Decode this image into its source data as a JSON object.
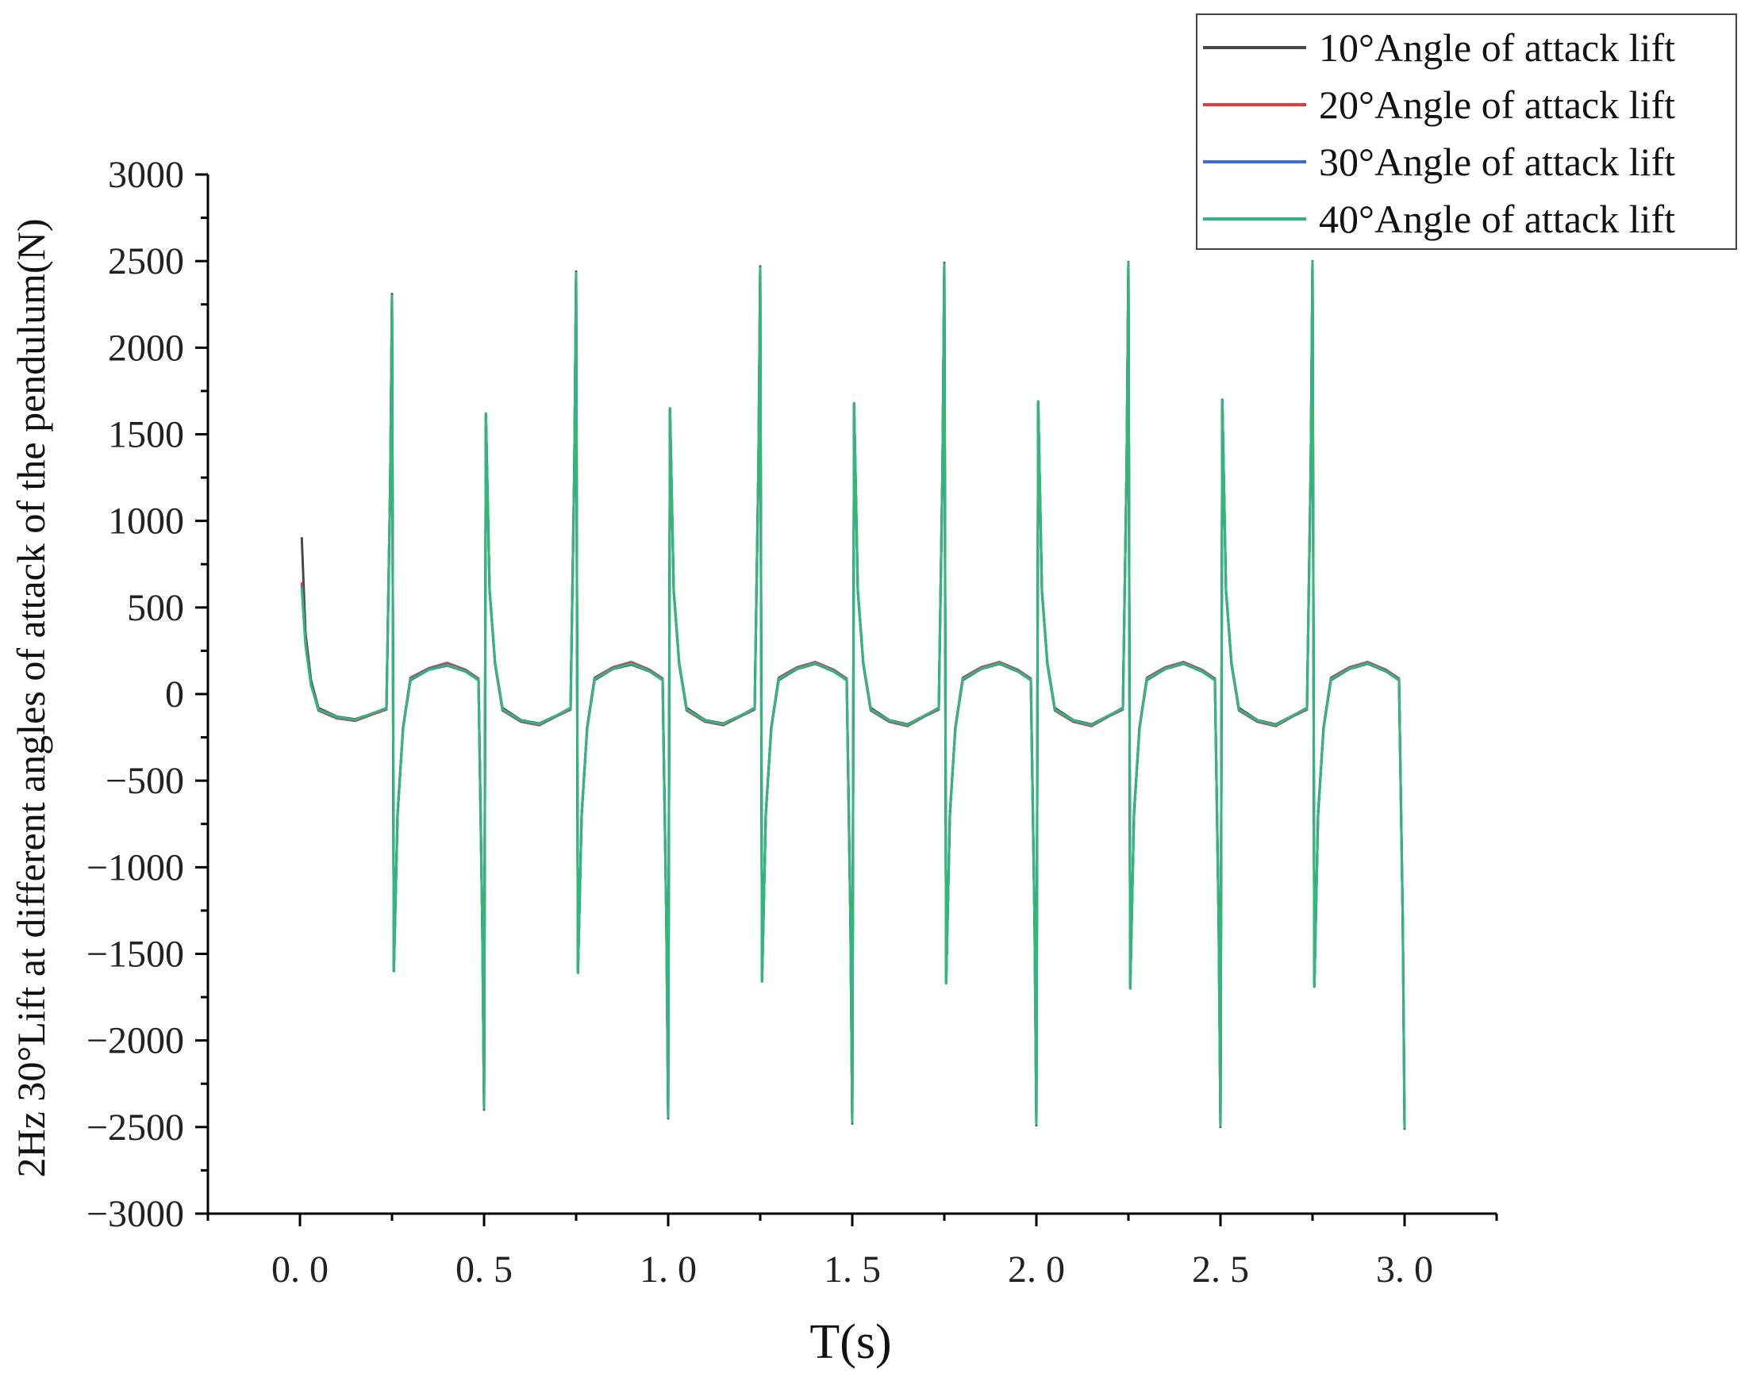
{
  "chart_data": {
    "type": "line",
    "xlabel": "T(s)",
    "ylabel": "2Hz 30°Lift at different angles of attack of the pendulum(N)",
    "xlim": [
      -0.25,
      3.25
    ],
    "ylim": [
      -3000,
      3000
    ],
    "x_ticks": [
      0.0,
      0.5,
      1.0,
      1.5,
      2.0,
      2.5,
      3.0
    ],
    "x_tick_labels": [
      "0. 0",
      "0. 5",
      "1. 0",
      "1. 5",
      "2. 0",
      "2. 5",
      "3. 0"
    ],
    "y_ticks": [
      3000,
      2500,
      2000,
      1500,
      1000,
      500,
      0,
      -500,
      -1000,
      -1500,
      -2000,
      -2500,
      -3000
    ],
    "y_tick_labels": [
      "3000",
      "2500",
      "2000",
      "1500",
      "1000",
      "500",
      "0",
      "−500",
      "−1000",
      "−1500",
      "−2000",
      "−2500",
      "−3000"
    ],
    "grid": false,
    "legend_position": "top-right",
    "series": [
      {
        "name": "10°Angle of attack lift",
        "color": "#4a4a4a",
        "x": [
          0.005,
          0.015,
          0.03,
          0.05,
          0.1,
          0.15,
          0.2,
          0.235,
          0.245,
          0.25,
          0.255,
          0.265,
          0.28,
          0.3,
          0.35,
          0.4,
          0.45,
          0.485,
          0.495,
          0.5,
          0.505,
          0.515,
          0.53,
          0.55,
          0.6,
          0.65,
          0.7,
          0.735,
          0.745,
          0.75,
          0.755,
          0.765,
          0.78,
          0.8,
          0.85,
          0.9,
          0.95,
          0.985,
          0.995,
          1.0,
          1.005,
          1.015,
          1.03,
          1.05,
          1.1,
          1.15,
          1.2,
          1.235,
          1.245,
          1.25,
          1.255,
          1.265,
          1.28,
          1.3,
          1.35,
          1.4,
          1.45,
          1.485,
          1.495,
          1.5,
          1.505,
          1.515,
          1.53,
          1.55,
          1.6,
          1.65,
          1.7,
          1.735,
          1.745,
          1.75,
          1.755,
          1.765,
          1.78,
          1.8,
          1.85,
          1.9,
          1.95,
          1.985,
          1.995,
          2.0,
          2.005,
          2.015,
          2.03,
          2.05,
          2.1,
          2.15,
          2.2,
          2.235,
          2.245,
          2.25,
          2.255,
          2.265,
          2.28,
          2.3,
          2.35,
          2.4,
          2.45,
          2.485,
          2.495,
          2.5,
          2.505,
          2.515,
          2.53,
          2.55,
          2.6,
          2.65,
          2.7,
          2.735,
          2.745,
          2.75,
          2.755,
          2.765,
          2.78,
          2.8,
          2.85,
          2.9,
          2.95,
          2.985,
          2.995,
          3.0
        ],
        "values": [
          900,
          350,
          80,
          -80,
          -130,
          -145,
          -110,
          -80,
          1200,
          2310,
          -1600,
          -700,
          -200,
          80,
          140,
          165,
          130,
          80,
          -1300,
          -2400,
          1620,
          600,
          180,
          -80,
          -150,
          -170,
          -120,
          -80,
          1300,
          2440,
          -1610,
          -700,
          -200,
          80,
          145,
          170,
          130,
          80,
          -1300,
          -2450,
          1650,
          600,
          180,
          -80,
          -150,
          -170,
          -120,
          -80,
          1300,
          2470,
          -1660,
          -700,
          -200,
          80,
          145,
          175,
          130,
          80,
          -1300,
          -2480,
          1680,
          600,
          180,
          -80,
          -150,
          -175,
          -120,
          -80,
          1300,
          2490,
          -1670,
          -700,
          -200,
          80,
          145,
          175,
          130,
          80,
          -1300,
          -2490,
          1690,
          600,
          180,
          -80,
          -150,
          -175,
          -120,
          -80,
          1300,
          2495,
          -1700,
          -700,
          -200,
          80,
          145,
          175,
          130,
          80,
          -1300,
          -2500,
          1700,
          600,
          180,
          -80,
          -150,
          -175,
          -120,
          -80,
          1300,
          2500,
          -1690,
          -700,
          -200,
          80,
          145,
          175,
          130,
          80,
          -1300,
          -2510
        ]
      },
      {
        "name": "20°Angle of attack lift",
        "color": "#e03c3c",
        "x": [
          0.005,
          0.015,
          0.03,
          0.05,
          0.1,
          0.15,
          0.2,
          0.235,
          0.245,
          0.25,
          0.255,
          0.265,
          0.28,
          0.3,
          0.35,
          0.4,
          0.45,
          0.485,
          0.495,
          0.5,
          0.505,
          0.515,
          0.53,
          0.55,
          0.6,
          0.65,
          0.7,
          0.735,
          0.745,
          0.75,
          0.755,
          0.765,
          0.78,
          0.8,
          0.85,
          0.9,
          0.95,
          0.985,
          0.995,
          1.0,
          1.005,
          1.015,
          1.03,
          1.05,
          1.1,
          1.15,
          1.2,
          1.235,
          1.245,
          1.25,
          1.255,
          1.265,
          1.28,
          1.3,
          1.35,
          1.4,
          1.45,
          1.485,
          1.495,
          1.5,
          1.505,
          1.515,
          1.53,
          1.55,
          1.6,
          1.65,
          1.7,
          1.735,
          1.745,
          1.75,
          1.755,
          1.765,
          1.78,
          1.8,
          1.85,
          1.9,
          1.95,
          1.985,
          1.995,
          2.0,
          2.005,
          2.015,
          2.03,
          2.05,
          2.1,
          2.15,
          2.2,
          2.235,
          2.245,
          2.25,
          2.255,
          2.265,
          2.28,
          2.3,
          2.35,
          2.4,
          2.45,
          2.485,
          2.495,
          2.5,
          2.505,
          2.515,
          2.53,
          2.55,
          2.6,
          2.65,
          2.7,
          2.735,
          2.745,
          2.75,
          2.755,
          2.765,
          2.78,
          2.8,
          2.85,
          2.9,
          2.95,
          2.985,
          2.995,
          3.0
        ],
        "values": [
          640,
          300,
          60,
          -95,
          -140,
          -155,
          -115,
          -90,
          1200,
          2300,
          -1600,
          -690,
          -190,
          95,
          150,
          180,
          140,
          90,
          -1300,
          -2390,
          1610,
          590,
          170,
          -95,
          -160,
          -180,
          -125,
          -90,
          1300,
          2430,
          -1600,
          -690,
          -190,
          95,
          155,
          185,
          140,
          90,
          -1300,
          -2440,
          1640,
          590,
          170,
          -95,
          -160,
          -180,
          -125,
          -90,
          1300,
          2460,
          -1650,
          -690,
          -190,
          95,
          155,
          185,
          140,
          90,
          -1300,
          -2470,
          1670,
          590,
          170,
          -95,
          -160,
          -185,
          -125,
          -90,
          1300,
          2480,
          -1660,
          -690,
          -190,
          95,
          155,
          185,
          140,
          90,
          -1300,
          -2480,
          1680,
          590,
          170,
          -95,
          -160,
          -185,
          -125,
          -90,
          1300,
          2490,
          -1690,
          -690,
          -190,
          95,
          155,
          185,
          140,
          90,
          -1300,
          -2490,
          1690,
          590,
          170,
          -95,
          -160,
          -185,
          -125,
          -90,
          1300,
          2495,
          -1680,
          -690,
          -190,
          95,
          155,
          185,
          140,
          90,
          -1300,
          -2500
        ]
      },
      {
        "name": "30°Angle of attack lift",
        "color": "#3a6fd8",
        "x": [
          0.005,
          0.015,
          0.03,
          0.05,
          0.1,
          0.15,
          0.2,
          0.235,
          0.245,
          0.25,
          0.255,
          0.265,
          0.28,
          0.3,
          0.35,
          0.4,
          0.45,
          0.485,
          0.495,
          0.5,
          0.505,
          0.515,
          0.53,
          0.55,
          0.6,
          0.65,
          0.7,
          0.735,
          0.745,
          0.75,
          0.755,
          0.765,
          0.78,
          0.8,
          0.85,
          0.9,
          0.95,
          0.985,
          0.995,
          1.0,
          1.005,
          1.015,
          1.03,
          1.05,
          1.1,
          1.15,
          1.2,
          1.235,
          1.245,
          1.25,
          1.255,
          1.265,
          1.28,
          1.3,
          1.35,
          1.4,
          1.45,
          1.485,
          1.495,
          1.5,
          1.505,
          1.515,
          1.53,
          1.55,
          1.6,
          1.65,
          1.7,
          1.735,
          1.745,
          1.75,
          1.755,
          1.765,
          1.78,
          1.8,
          1.85,
          1.9,
          1.95,
          1.985,
          1.995,
          2.0,
          2.005,
          2.015,
          2.03,
          2.05,
          2.1,
          2.15,
          2.2,
          2.235,
          2.245,
          2.25,
          2.255,
          2.265,
          2.28,
          2.3,
          2.35,
          2.4,
          2.45,
          2.485,
          2.495,
          2.5,
          2.505,
          2.515,
          2.53,
          2.55,
          2.6,
          2.65,
          2.7,
          2.735,
          2.745,
          2.75,
          2.755,
          2.765,
          2.78,
          2.8,
          2.85,
          2.9,
          2.95,
          2.985,
          2.995,
          3.0
        ],
        "values": [
          620,
          290,
          55,
          -90,
          -135,
          -150,
          -110,
          -85,
          1200,
          2300,
          -1600,
          -695,
          -195,
          90,
          145,
          172,
          135,
          85,
          -1300,
          -2395,
          1615,
          595,
          175,
          -90,
          -155,
          -175,
          -122,
          -85,
          1300,
          2435,
          -1605,
          -695,
          -195,
          90,
          150,
          178,
          135,
          85,
          -1300,
          -2445,
          1645,
          595,
          175,
          -90,
          -155,
          -175,
          -122,
          -85,
          1300,
          2465,
          -1655,
          -695,
          -195,
          90,
          150,
          180,
          135,
          85,
          -1300,
          -2475,
          1675,
          595,
          175,
          -90,
          -155,
          -180,
          -122,
          -85,
          1300,
          2485,
          -1665,
          -695,
          -195,
          90,
          150,
          180,
          135,
          85,
          -1300,
          -2485,
          1685,
          595,
          175,
          -90,
          -155,
          -180,
          -122,
          -85,
          1300,
          2492,
          -1695,
          -695,
          -195,
          90,
          150,
          180,
          135,
          85,
          -1300,
          -2495,
          1695,
          595,
          175,
          -90,
          -155,
          -180,
          -122,
          -85,
          1300,
          2498,
          -1685,
          -695,
          -195,
          90,
          150,
          180,
          135,
          85,
          -1300,
          -2505
        ]
      },
      {
        "name": "40°Angle of attack lift",
        "color": "#2fb87a",
        "x": [
          0.005,
          0.015,
          0.03,
          0.05,
          0.1,
          0.15,
          0.2,
          0.235,
          0.245,
          0.25,
          0.255,
          0.265,
          0.28,
          0.3,
          0.35,
          0.4,
          0.45,
          0.485,
          0.495,
          0.5,
          0.505,
          0.515,
          0.53,
          0.55,
          0.6,
          0.65,
          0.7,
          0.735,
          0.745,
          0.75,
          0.755,
          0.765,
          0.78,
          0.8,
          0.85,
          0.9,
          0.95,
          0.985,
          0.995,
          1.0,
          1.005,
          1.015,
          1.03,
          1.05,
          1.1,
          1.15,
          1.2,
          1.235,
          1.245,
          1.25,
          1.255,
          1.265,
          1.28,
          1.3,
          1.35,
          1.4,
          1.45,
          1.485,
          1.495,
          1.5,
          1.505,
          1.515,
          1.53,
          1.55,
          1.6,
          1.65,
          1.7,
          1.735,
          1.745,
          1.75,
          1.755,
          1.765,
          1.78,
          1.8,
          1.85,
          1.9,
          1.95,
          1.985,
          1.995,
          2.0,
          2.005,
          2.015,
          2.03,
          2.05,
          2.1,
          2.15,
          2.2,
          2.235,
          2.245,
          2.25,
          2.255,
          2.265,
          2.28,
          2.3,
          2.35,
          2.4,
          2.45,
          2.485,
          2.495,
          2.5,
          2.505,
          2.515,
          2.53,
          2.55,
          2.6,
          2.65,
          2.7,
          2.735,
          2.745,
          2.75,
          2.755,
          2.765,
          2.78,
          2.8,
          2.85,
          2.9,
          2.95,
          2.985,
          2.995,
          3.0
        ],
        "values": [
          610,
          280,
          50,
          -88,
          -132,
          -148,
          -108,
          -82,
          1200,
          2300,
          -1600,
          -700,
          -200,
          85,
          140,
          168,
          132,
          82,
          -1300,
          -2390,
          1620,
          600,
          180,
          -88,
          -152,
          -172,
          -120,
          -82,
          1300,
          2430,
          -1610,
          -700,
          -200,
          85,
          147,
          175,
          132,
          82,
          -1300,
          -2440,
          1650,
          600,
          180,
          -88,
          -152,
          -172,
          -120,
          -82,
          1300,
          2460,
          -1660,
          -700,
          -200,
          85,
          147,
          178,
          132,
          82,
          -1300,
          -2470,
          1680,
          600,
          180,
          -88,
          -152,
          -178,
          -120,
          -82,
          1300,
          2480,
          -1670,
          -700,
          -200,
          85,
          147,
          178,
          132,
          82,
          -1300,
          -2480,
          1690,
          600,
          180,
          -88,
          -152,
          -178,
          -120,
          -82,
          1300,
          2490,
          -1700,
          -700,
          -200,
          85,
          147,
          178,
          132,
          82,
          -1300,
          -2490,
          1700,
          600,
          180,
          -88,
          -152,
          -178,
          -120,
          -82,
          1300,
          2495,
          -1690,
          -700,
          -200,
          85,
          147,
          178,
          132,
          82,
          -1300,
          -2500
        ]
      }
    ]
  }
}
